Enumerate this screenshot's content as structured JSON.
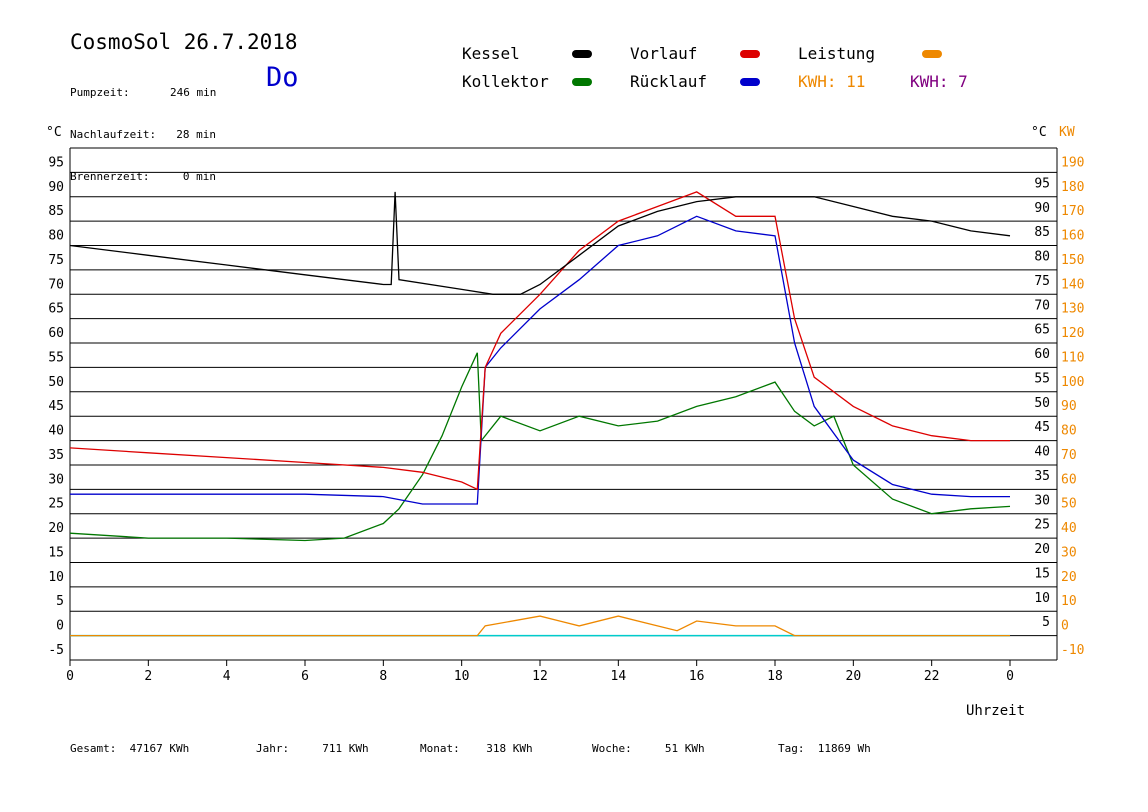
{
  "header": {
    "title": "CosmoSol 26.7.2018",
    "day": "Do",
    "stats": [
      {
        "label": "Pumpzeit:",
        "value": "246 min"
      },
      {
        "label": "Nachlaufzeit:",
        "value": "28 min"
      },
      {
        "label": "Brennerzeit:",
        "value": "0 min"
      }
    ]
  },
  "legend": {
    "kessel": "Kessel",
    "vorlauf": "Vorlauf",
    "leistung": "Leistung",
    "kollektor": "Kollektor",
    "ruecklauf": "Rücklauf",
    "kwh1": "KWH: 11",
    "kwh2": "KWH: 7"
  },
  "colors": {
    "kessel": "#000000",
    "vorlauf": "#dd0000",
    "ruecklauf": "#0000cc",
    "kollektor": "#007700",
    "leistung": "#ee8800",
    "kwh2": "#800080",
    "baseline": "#00cccc"
  },
  "footer": [
    {
      "label": "Gesamt:",
      "value": "47167 KWh"
    },
    {
      "label": "Jahr:",
      "value": "711 KWh"
    },
    {
      "label": "Monat:",
      "value": "318 KWh"
    },
    {
      "label": "Woche:",
      "value": "51 KWh"
    },
    {
      "label": "Tag:",
      "value": "11869 Wh"
    }
  ],
  "chart_data": {
    "type": "line",
    "xlabel": "Uhrzeit",
    "ylabel_left": "°C",
    "ylabel_right_temp": "°C",
    "ylabel_right_power": "KW",
    "xlim": [
      0,
      24
    ],
    "ylim": [
      -5,
      100
    ],
    "x_ticks": [
      "0",
      "2",
      "4",
      "6",
      "8",
      "10",
      "12",
      "14",
      "16",
      "18",
      "20",
      "22",
      "0"
    ],
    "y_ticks": [
      -5,
      0,
      5,
      10,
      15,
      20,
      25,
      30,
      35,
      40,
      45,
      50,
      55,
      60,
      65,
      70,
      75,
      80,
      85,
      90,
      95
    ],
    "y_ticks_right_temp": [
      5,
      10,
      15,
      20,
      25,
      30,
      35,
      40,
      45,
      50,
      55,
      60,
      65,
      70,
      75,
      80,
      85,
      90,
      95
    ],
    "y_ticks_right_power": [
      -10,
      0,
      10,
      20,
      30,
      40,
      50,
      60,
      70,
      80,
      90,
      100,
      110,
      120,
      130,
      140,
      150,
      160,
      170,
      180,
      190
    ],
    "grid": true,
    "series": [
      {
        "name": "Kessel",
        "x": [
          0,
          2,
          4,
          6,
          8,
          8.2,
          8.3,
          8.4,
          10,
          10.8,
          11.5,
          12,
          13,
          14,
          15,
          16,
          17,
          18,
          19,
          20,
          21,
          22,
          23,
          24
        ],
        "y": [
          80,
          78,
          76,
          74,
          72,
          72,
          91,
          73,
          71,
          70,
          70,
          72,
          78,
          84,
          87,
          89,
          90,
          90,
          90,
          88,
          86,
          85,
          83,
          82
        ]
      },
      {
        "name": "Vorlauf",
        "x": [
          0,
          2,
          4,
          6,
          8,
          9,
          10,
          10.4,
          10.6,
          11,
          12,
          13,
          14,
          15,
          16,
          17,
          17.5,
          18,
          18.5,
          19,
          20,
          21,
          22,
          23,
          24
        ],
        "y": [
          38.5,
          37.5,
          36.5,
          35.5,
          34.5,
          33.5,
          31.5,
          30,
          55,
          62,
          70,
          79,
          85,
          88,
          91,
          86,
          86,
          86,
          65,
          53,
          47,
          43,
          41,
          40,
          40
        ]
      },
      {
        "name": "Rücklauf",
        "x": [
          0,
          2,
          4,
          6,
          8,
          9,
          10,
          10.4,
          10.6,
          11,
          12,
          13,
          14,
          15,
          16,
          17,
          18,
          18.5,
          19,
          20,
          21,
          22,
          23,
          24
        ],
        "y": [
          29,
          29,
          29,
          29,
          28.5,
          27,
          27,
          27,
          55,
          59,
          67,
          73,
          80,
          82,
          86,
          83,
          82,
          60,
          47,
          36,
          31,
          29,
          28.5,
          28.5
        ]
      },
      {
        "name": "Kollektor",
        "x": [
          0,
          2,
          4,
          6,
          7,
          8,
          8.4,
          9,
          9.5,
          10,
          10.4,
          10.5,
          11,
          12,
          13,
          14,
          15,
          16,
          17,
          18,
          18.5,
          19,
          19.5,
          20,
          21,
          22,
          23,
          24
        ],
        "y": [
          21,
          20,
          20,
          19.5,
          20,
          23,
          26,
          33,
          41,
          51,
          58,
          40,
          45,
          42,
          45,
          43,
          44,
          47,
          49,
          52,
          46,
          43,
          45,
          35,
          28,
          25,
          26,
          26.5
        ]
      },
      {
        "name": "Leistung",
        "x": [
          0,
          10.4,
          10.6,
          12,
          12.5,
          13,
          14,
          15,
          15.5,
          16,
          17,
          18,
          18.5,
          24
        ],
        "y": [
          0,
          0,
          2,
          4,
          3,
          2,
          4,
          2,
          1,
          3,
          2,
          2,
          0,
          0
        ]
      }
    ],
    "annotations": [
      "KWH: 11",
      "KWH: 7"
    ]
  }
}
